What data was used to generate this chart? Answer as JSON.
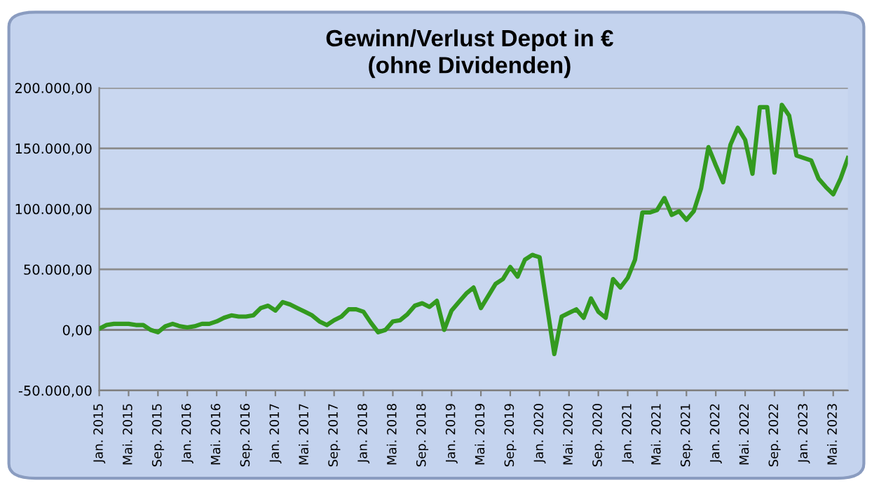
{
  "chart_data": {
    "type": "line",
    "title": "Gewinn/Verlust Depot in €\n(ohne Dividenden)",
    "categories": [
      "Jan. 2015",
      null,
      null,
      null,
      "Mai. 2015",
      null,
      null,
      null,
      "Sep. 2015",
      null,
      null,
      null,
      "Jan. 2016",
      null,
      null,
      null,
      "Mai. 2016",
      null,
      null,
      null,
      "Sep. 2016",
      null,
      null,
      null,
      "Jan. 2017",
      null,
      null,
      null,
      "Mai. 2017",
      null,
      null,
      null,
      "Sep. 2017",
      null,
      null,
      null,
      "Jan. 2018",
      null,
      null,
      null,
      "Mai. 2018",
      null,
      null,
      null,
      "Sep. 2018",
      null,
      null,
      null,
      "Jan. 2019",
      null,
      null,
      null,
      "Mai. 2019",
      null,
      null,
      null,
      "Sep. 2019",
      null,
      null,
      null,
      "Jan. 2020",
      null,
      null,
      null,
      "Mai. 2020",
      null,
      null,
      null,
      "Sep. 2020",
      null,
      null,
      null,
      "Jan. 2021",
      null,
      null,
      null,
      "Mai. 2021",
      null,
      null,
      null,
      "Sep. 2021",
      null,
      null,
      null,
      "Jan. 2022",
      null,
      null,
      null,
      "Mai. 2022",
      null,
      null,
      null,
      "Sep. 2022",
      null,
      null,
      null,
      "Jan. 2023",
      null,
      null,
      null,
      "Mai. 2023",
      null,
      null
    ],
    "series": [
      {
        "color": "#339a1f",
        "values": [
          1000,
          4000,
          5000,
          5000,
          5000,
          4000,
          4000,
          0,
          -2000,
          3000,
          5000,
          3000,
          2000,
          3000,
          5000,
          5000,
          7000,
          10000,
          12000,
          11000,
          11000,
          12000,
          18000,
          20000,
          16000,
          23000,
          21000,
          18000,
          15000,
          12000,
          7000,
          4000,
          8000,
          11000,
          17000,
          17000,
          15000,
          6000,
          -2000,
          0,
          7000,
          8000,
          13000,
          20000,
          22000,
          19000,
          24000,
          0,
          16000,
          23000,
          30000,
          35000,
          18000,
          28000,
          38000,
          42000,
          52000,
          44000,
          58000,
          62000,
          60000,
          20000,
          -20000,
          11000,
          14000,
          17000,
          10000,
          26000,
          15000,
          10000,
          42000,
          35000,
          43000,
          58000,
          97000,
          97000,
          99000,
          109000,
          95000,
          98000,
          91000,
          98000,
          117000,
          151000,
          136000,
          122000,
          153000,
          167000,
          157000,
          129000,
          184000,
          184000,
          130000,
          186000,
          177000,
          144000,
          142000,
          140000,
          125000,
          118000,
          112000,
          125000,
          142000
        ]
      }
    ],
    "ylim": [
      -50000,
      200000
    ],
    "yticks": [
      {
        "value": -50000,
        "label": "-50.000,00"
      },
      {
        "value": 0,
        "label": "0,00"
      },
      {
        "value": 50000,
        "label": "50.000,00"
      },
      {
        "value": 100000,
        "label": "100.000,00"
      },
      {
        "value": 150000,
        "label": "150.000,00"
      },
      {
        "value": 200000,
        "label": "200.000,00"
      }
    ],
    "grid": "y",
    "marker": "none",
    "line_style": "solid"
  }
}
